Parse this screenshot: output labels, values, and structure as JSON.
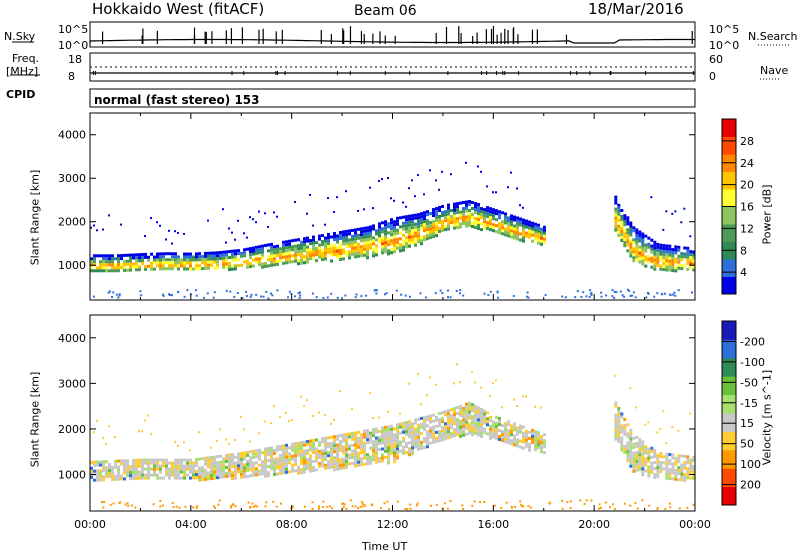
{
  "header": {
    "left": "Hokkaido West (fitACF)",
    "center": "Beam 06",
    "right": "18/Mar/2016"
  },
  "aux": {
    "nsky_label": "N.Sky",
    "nsearch_label": "N.Search",
    "freq_label": "Freq.",
    "freq_unit": "[MHz]",
    "nave_label": "Nave",
    "cpid_label": "CPID",
    "cpid_text": "normal (fast stereo) 153",
    "noise_ticks_left": [
      "10^5",
      "10^0"
    ],
    "noise_ticks_right": [
      "10^5",
      "10^0"
    ],
    "freq_ticks": [
      "18",
      "8"
    ],
    "nave_ticks": [
      "60",
      "0"
    ]
  },
  "chart_data": [
    {
      "type": "heatmap",
      "name": "power",
      "ylabel": "Slant Range [km]",
      "ylim": [
        200,
        4500
      ],
      "yticks": [
        1000,
        2000,
        3000,
        4000
      ],
      "xlim": [
        0,
        24
      ],
      "colorbar": {
        "label": "Power [dB]",
        "ticks": [
          4,
          8,
          12,
          16,
          20,
          24,
          28
        ],
        "colors": [
          "#0000e6",
          "#2e6fd8",
          "#2e8b57",
          "#4c9a58",
          "#8fc460",
          "#ffff33",
          "#ffc400",
          "#ff8800",
          "#ff4a00",
          "#e60000"
        ]
      },
      "echo_band": [
        [
          0,
          900,
          1250
        ],
        [
          1,
          880,
          1250
        ],
        [
          2,
          900,
          1280
        ],
        [
          3,
          900,
          1300
        ],
        [
          4,
          900,
          1290
        ],
        [
          5,
          920,
          1320
        ],
        [
          6,
          950,
          1380
        ],
        [
          7,
          1000,
          1500
        ],
        [
          8,
          1050,
          1600
        ],
        [
          9,
          1100,
          1700
        ],
        [
          10,
          1150,
          1800
        ],
        [
          11,
          1200,
          1900
        ],
        [
          12,
          1300,
          2100
        ],
        [
          13,
          1500,
          2200
        ],
        [
          14,
          1800,
          2400
        ],
        [
          15,
          1900,
          2500
        ],
        [
          16,
          1800,
          2300
        ],
        [
          17,
          1600,
          2100
        ],
        [
          18,
          1500,
          1900
        ]
      ],
      "echo_band2": [
        [
          20.8,
          1800,
          2600
        ],
        [
          21.5,
          1100,
          1900
        ],
        [
          22.5,
          900,
          1500
        ],
        [
          24,
          900,
          1400
        ]
      ]
    },
    {
      "type": "heatmap",
      "name": "velocity",
      "ylabel": "Slant Range [km]",
      "ylim": [
        200,
        4500
      ],
      "yticks": [
        1000,
        2000,
        3000,
        4000
      ],
      "xlim": [
        0,
        24
      ],
      "colorbar": {
        "label": "Velocity [m s^-1]",
        "ticks": [
          200,
          100,
          50,
          15,
          -15,
          -50,
          -100,
          -200
        ],
        "colors": [
          "#1a1ab8",
          "#2e6fd8",
          "#2e8b57",
          "#67c23a",
          "#a8e070",
          "#c8c8c8",
          "#ffcc33",
          "#ff9900",
          "#ff4a00",
          "#e60000"
        ]
      },
      "echo_band": [
        [
          0,
          900,
          1300
        ],
        [
          2,
          900,
          1350
        ],
        [
          4,
          900,
          1350
        ],
        [
          6,
          950,
          1500
        ],
        [
          8,
          1050,
          1700
        ],
        [
          10,
          1150,
          1900
        ],
        [
          12,
          1300,
          2100
        ],
        [
          14,
          1800,
          2400
        ],
        [
          15,
          1900,
          2600
        ],
        [
          16,
          1800,
          2300
        ],
        [
          17,
          1600,
          2100
        ],
        [
          18,
          1500,
          1900
        ]
      ],
      "echo_band2": [
        [
          20.8,
          1800,
          2600
        ],
        [
          21.5,
          1100,
          1900
        ],
        [
          22.5,
          900,
          1500
        ],
        [
          24,
          900,
          1400
        ]
      ]
    }
  ],
  "x_axis": {
    "ticks": [
      "00:00",
      "04:00",
      "08:00",
      "12:00",
      "16:00",
      "20:00",
      "00:00"
    ],
    "label": "Time UT"
  }
}
